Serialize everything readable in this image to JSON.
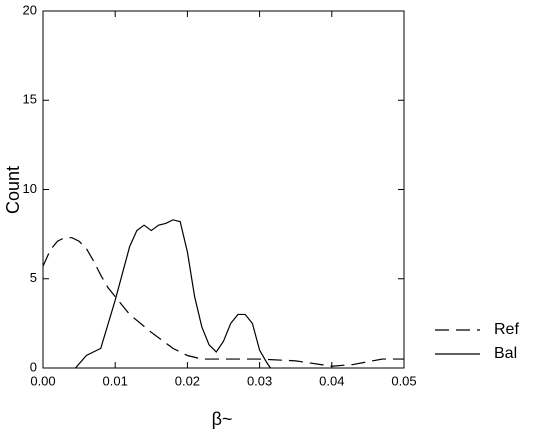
{
  "chart_data": {
    "type": "line",
    "xlabel": "β~",
    "ylabel": "Count",
    "xlim": [
      0,
      0.05
    ],
    "ylim": [
      0,
      20
    ],
    "xticks": [
      {
        "value": 0,
        "label": "0.00"
      },
      {
        "value": 0.01,
        "label": "0.01"
      },
      {
        "value": 0.02,
        "label": "0.02"
      },
      {
        "value": 0.03,
        "label": "0.03"
      },
      {
        "value": 0.04,
        "label": "0.04"
      },
      {
        "value": 0.05,
        "label": "0.05"
      }
    ],
    "yticks": [
      0,
      5,
      10,
      15,
      20
    ],
    "legend": "lower right",
    "series": [
      {
        "name": "Ref",
        "color": "#000000",
        "linestyle": "dashed",
        "x": [
          0,
          0.001,
          0.002,
          0.003,
          0.004,
          0.005,
          0.006,
          0.007,
          0.008,
          0.009,
          0.01,
          0.012,
          0.015,
          0.018,
          0.02,
          0.022,
          0.025,
          0.03,
          0.035,
          0.04,
          0.043,
          0.047,
          0.05
        ],
        "values": [
          5.7,
          6.6,
          7.1,
          7.3,
          7.3,
          7.1,
          6.7,
          6.0,
          5.2,
          4.5,
          4.0,
          3.0,
          2.0,
          1.1,
          0.7,
          0.5,
          0.5,
          0.5,
          0.4,
          0.1,
          0.2,
          0.5,
          0.5
        ]
      },
      {
        "name": "Bal",
        "color": "#000000",
        "linestyle": "solid",
        "x": [
          0.0045,
          0.006,
          0.008,
          0.01,
          0.012,
          0.013,
          0.014,
          0.015,
          0.016,
          0.017,
          0.018,
          0.019,
          0.02,
          0.021,
          0.022,
          0.023,
          0.024,
          0.025,
          0.026,
          0.027,
          0.028,
          0.029,
          0.03,
          0.031,
          0.0315
        ],
        "values": [
          0,
          0.7,
          1.1,
          3.8,
          6.8,
          7.7,
          8.0,
          7.7,
          8.0,
          8.1,
          8.3,
          8.2,
          6.5,
          4.0,
          2.3,
          1.3,
          0.9,
          1.5,
          2.5,
          3.0,
          3.0,
          2.5,
          1.0,
          0.3,
          0
        ]
      }
    ]
  }
}
